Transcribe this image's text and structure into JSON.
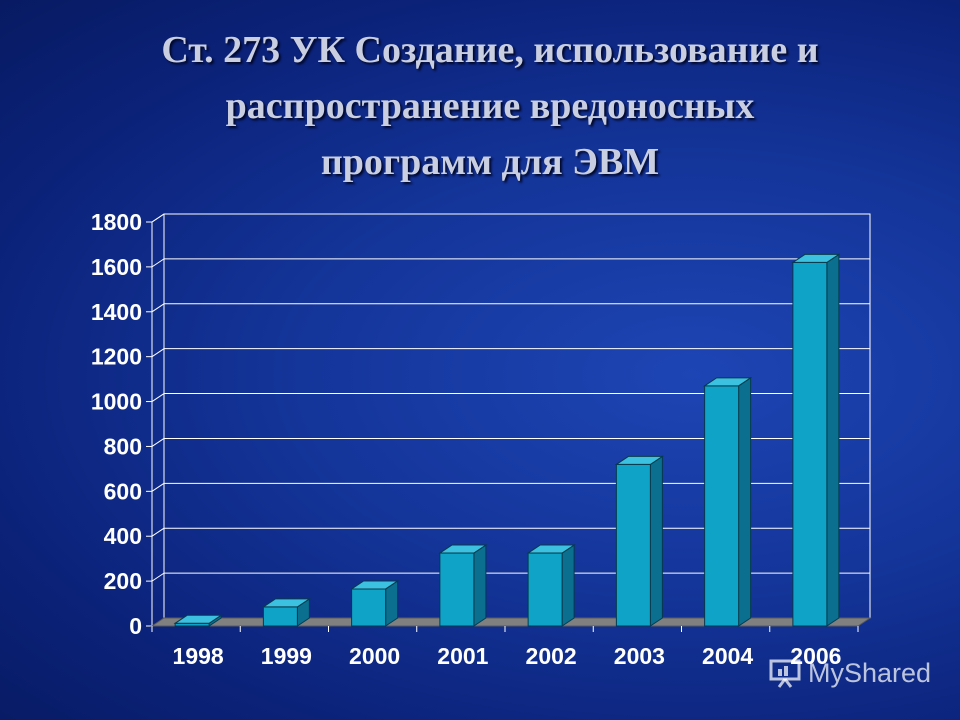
{
  "slide": {
    "title_lines": [
      "Ст. 273 УК Создание, использование и",
      "распространение вредоносных",
      "программ для ЭВМ"
    ]
  },
  "chart_data": {
    "type": "bar",
    "categories": [
      "1998",
      "1999",
      "2000",
      "2001",
      "2002",
      "2003",
      "2004",
      "2006"
    ],
    "values": [
      12,
      85,
      165,
      325,
      325,
      720,
      1070,
      1620
    ],
    "title": "",
    "xlabel": "",
    "ylabel": "",
    "ylim": [
      0,
      1800
    ],
    "yticks": [
      0,
      200,
      400,
      600,
      800,
      1000,
      1200,
      1400,
      1600,
      1800
    ],
    "grid": true,
    "legend": "none",
    "style": "3d-column",
    "colors": {
      "bar": "#0fa3c8",
      "bar_side": "#0b6f8f",
      "bar_top": "#3cc2e0",
      "grid": "#ffffff",
      "floor": "#808080"
    }
  },
  "watermark": {
    "text": "MyShared"
  }
}
